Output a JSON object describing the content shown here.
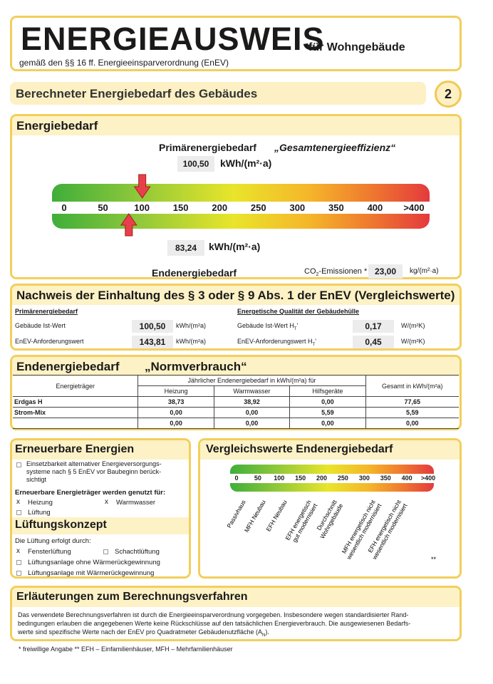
{
  "header": {
    "title": "ENERGIEAUSWEIS",
    "title_suffix": "für Wohngebäude",
    "subtitle": "gemäß den §§ 16 ff. Energieeinsparverordnung (EnEV)"
  },
  "section_bar": {
    "title": "Berechneter Energiebedarf des Gebäudes",
    "page": "2"
  },
  "energiebedarf": {
    "title": "Energiebedarf",
    "primary_label": "Primärenergiebedarf",
    "primary_note": "„Gesamtenergieeffizienz“",
    "primary_value": "100,50",
    "primary_unit": "kWh/(m²·a)",
    "scale": [
      "0",
      "50",
      "100",
      "150",
      "200",
      "250",
      "300",
      "350",
      "400",
      ">400"
    ],
    "final_value": "83,24",
    "final_unit": "kWh/(m²·a)",
    "final_label": "Endenergiebedarf",
    "co2_label": "CO",
    "co2_sub": "2",
    "co2_suffix": "-Emissionen *",
    "co2_value": "23,00",
    "co2_unit": "kg/(m²·a)"
  },
  "nachweis": {
    "title": "Nachweis der Einhaltung des § 3 oder § 9 Abs. 1 der EnEV (Vergleichswerte)",
    "left_heading": "Primärenergiebedarf",
    "left_rows": [
      {
        "label": "Gebäude Ist-Wert",
        "value": "100,50",
        "unit": "kWh/(m²a)"
      },
      {
        "label": "EnEV-Anforderungswert",
        "value": "143,81",
        "unit": "kWh/(m²a)"
      }
    ],
    "right_heading": "Energetische Qualität der Gebäudehülle",
    "right_rows": [
      {
        "label": "Gebäude Ist-Wert H",
        "sub": "T",
        "suffix": "'",
        "value": "0,17",
        "unit": "W/(m²K)"
      },
      {
        "label": "EnEV-Anforderungswert H",
        "sub": "T",
        "suffix": "'",
        "value": "0,45",
        "unit": "W/(m²K)"
      }
    ]
  },
  "endenergie": {
    "title": "Endenergiebedarf",
    "note": "„Normverbrauch“",
    "table": {
      "carrier_header": "Energieträger",
      "group_header": "Jährlicher Endenergiebedarf in kWh/(m²a) für",
      "total_header": "Gesamt in kWh/(m²a)",
      "sub_headers": [
        "Heizung",
        "Warmwasser",
        "Hilfsgeräte"
      ],
      "rows": [
        [
          "Erdgas H",
          "38,73",
          "38,92",
          "0,00",
          "77,65"
        ],
        [
          "Strom-Mix",
          "0,00",
          "0,00",
          "5,59",
          "5,59"
        ],
        [
          null,
          "0,00",
          "0,00",
          "0,00",
          "0,00"
        ]
      ]
    }
  },
  "erneuerbar": {
    "title": "Erneuerbare Energien",
    "check_lines": [
      "Einsetzbarkeit alternativer Energieversorgungs-",
      "systeme nach § 5 EnEV vor Baubeginn berück-",
      "sichtigt"
    ],
    "used_heading": "Erneuerbare Energieträger werden genutzt für:",
    "options": [
      {
        "mark": "x",
        "label": "Heizung"
      },
      {
        "mark": "x",
        "label": "Warmwasser"
      },
      {
        "mark": null,
        "label": "Lüftung"
      }
    ]
  },
  "lueftung": {
    "title": "Lüftungskonzept",
    "intro": "Die Lüftung erfolgt durch:",
    "options": [
      {
        "mark": "x",
        "label": "Fensterlüftung"
      },
      {
        "mark": null,
        "label": "Schachtlüftung"
      },
      {
        "mark": null,
        "label": "Lüftungsanlage ohne Wärmerückgewinnung"
      },
      {
        "mark": null,
        "label": "Lüftungsanlage mit Wärmerückgewinnung"
      }
    ]
  },
  "vergleich": {
    "title": "Vergleichswerte Endenergiebedarf",
    "scale": [
      "0",
      "50",
      "100",
      "150",
      "200",
      "250",
      "300",
      "350",
      "400",
      ">400"
    ],
    "labels": [
      [
        "Passivhaus"
      ],
      [
        "MFH Neubau"
      ],
      [
        "EFH Neubau"
      ],
      [
        "EFH energetisch",
        "gut modernisiert"
      ],
      [
        "Durchschnitt",
        "Wohngebäude"
      ],
      [
        "MFH energetisch nicht",
        "wesentlich modernisiert"
      ],
      [
        "EFH energetisch nicht",
        "wesentlich modernisiert"
      ]
    ],
    "note": "**"
  },
  "erlaeuterungen": {
    "title": "Erläuterungen zum Berechnungsverfahren",
    "lines": [
      "Das verwendete Berechnungsverfahren ist durch die Energieeinsparverordnung vorgegeben. Insbesondere wegen standardisierter Rand-",
      "bedingungen erlauben die angegebenen Werte keine Rückschlüsse auf den tatsächlichen Energieverbrauch. Die ausgewiesenen Bedarfs-",
      "werte sind spezifische Werte nach der EnEV pro Quadratmeter Gebäudenutzfläche (A"
    ],
    "sub": "N",
    "suffix": ")."
  },
  "footnote": "* freiwillige Angabe ** EFH – Einfamilienhäuser, MFH – Mehrfamilienhäuser"
}
